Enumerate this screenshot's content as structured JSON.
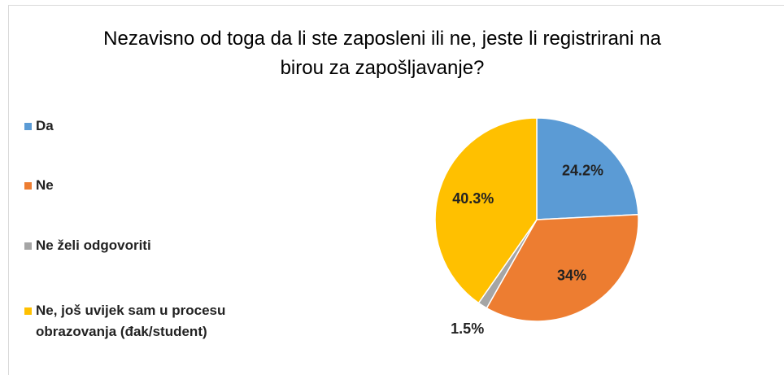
{
  "chart_data": {
    "type": "pie",
    "title": "Nezavisno od toga da li ste zaposleni ili ne, jeste li registrirani na birou za zapošljavanje?",
    "categories": [
      "Da",
      "Ne",
      "Ne želi odgovoriti",
      "Ne, još uvijek sam u procesu obrazovanja (đak/student)"
    ],
    "values": [
      24.2,
      34,
      1.5,
      40.3
    ],
    "value_labels": [
      "24.2%",
      "34%",
      "1.5%",
      "40.3%"
    ],
    "colors": [
      "#5b9bd5",
      "#ed7d31",
      "#a5a5a5",
      "#ffc000"
    ],
    "legend": "left"
  }
}
